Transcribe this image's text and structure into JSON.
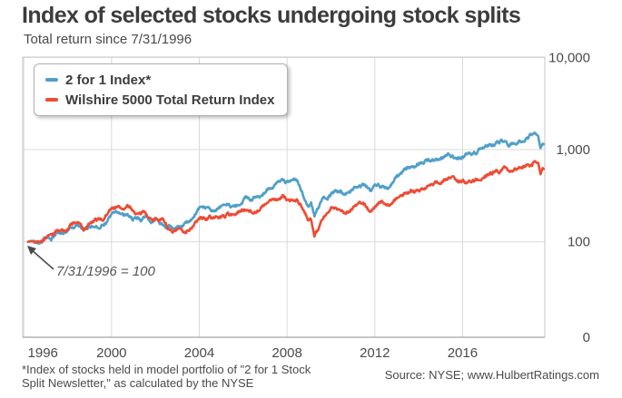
{
  "header": {
    "title": "Index of selected stocks undergoing stock splits",
    "subtitle": "Total return since 7/31/1996"
  },
  "legend": {
    "items": [
      {
        "label": "2 for 1 Index*",
        "color": "#4f9fca"
      },
      {
        "label": "Wilshire 5000 Total Return Index",
        "color": "#ee4b33"
      }
    ]
  },
  "annotation": {
    "text": "7/31/1996 = 100"
  },
  "footer": {
    "footnote_line1": "*Index of stocks held in model portfolio of \"2 for 1 Stock",
    "footnote_line2": "Split Newsletter,\" as calculated by the NYSE",
    "source": "Source: NYSE; www.HulbertRatings.com"
  },
  "colors": {
    "blue_series": "#4f9fca",
    "red_series": "#ee4b33",
    "gridline": "#d9d9d9",
    "plot_border": "#c6c6c6",
    "bottom_axis": "#b3b3b3",
    "axis_text": "#4a4a4a",
    "arrow": "#4a4a4a"
  },
  "chart_data": {
    "type": "line",
    "title": "Index of selected stocks undergoing stock splits",
    "subtitle": "Total return since 7/31/1996",
    "base_note": "7/31/1996 = 100",
    "legend_position": "top-left",
    "grid": true,
    "x_axis": {
      "range": [
        1995.95,
        2019.75
      ],
      "ticks": [
        1996,
        2000,
        2004,
        2008,
        2012,
        2016
      ]
    },
    "y_axis": {
      "scale": "log",
      "tick_labels": [
        "10,000",
        "1,000",
        "100",
        "0"
      ],
      "tick_values": [
        10000,
        1000,
        100,
        0
      ],
      "side": "right"
    },
    "series": [
      {
        "name": "2 for 1 Index*",
        "color": "#4f9fca",
        "points": [
          [
            1996.2,
            100
          ],
          [
            1996.5,
            103
          ],
          [
            1996.8,
            107
          ],
          [
            1997.05,
            113
          ],
          [
            1997.25,
            108
          ],
          [
            1997.6,
            126
          ],
          [
            1997.8,
            122
          ],
          [
            1998.1,
            145
          ],
          [
            1998.45,
            155
          ],
          [
            1998.75,
            124
          ],
          [
            1999.0,
            145
          ],
          [
            1999.3,
            150
          ],
          [
            1999.6,
            158
          ],
          [
            1999.9,
            185
          ],
          [
            2000.2,
            210
          ],
          [
            2000.45,
            192
          ],
          [
            2000.7,
            205
          ],
          [
            2001.0,
            188
          ],
          [
            2001.35,
            172
          ],
          [
            2001.6,
            182
          ],
          [
            2001.8,
            162
          ],
          [
            2002.1,
            172
          ],
          [
            2002.4,
            158
          ],
          [
            2002.78,
            134
          ],
          [
            2003.05,
            142
          ],
          [
            2003.25,
            137
          ],
          [
            2003.7,
            180
          ],
          [
            2004.0,
            215
          ],
          [
            2004.5,
            228
          ],
          [
            2004.8,
            220
          ],
          [
            2005.2,
            245
          ],
          [
            2005.7,
            265
          ],
          [
            2006.2,
            310
          ],
          [
            2006.5,
            295
          ],
          [
            2007.0,
            355
          ],
          [
            2007.5,
            430
          ],
          [
            2007.85,
            465
          ],
          [
            2008.1,
            430
          ],
          [
            2008.45,
            445
          ],
          [
            2008.7,
            330
          ],
          [
            2008.95,
            235
          ],
          [
            2009.1,
            255
          ],
          [
            2009.25,
            188
          ],
          [
            2009.6,
            265
          ],
          [
            2010.0,
            330
          ],
          [
            2010.45,
            365
          ],
          [
            2010.65,
            325
          ],
          [
            2011.1,
            405
          ],
          [
            2011.45,
            430
          ],
          [
            2011.8,
            348
          ],
          [
            2012.05,
            400
          ],
          [
            2012.4,
            430
          ],
          [
            2012.6,
            415
          ],
          [
            2012.9,
            470
          ],
          [
            2013.4,
            600
          ],
          [
            2013.9,
            680
          ],
          [
            2014.4,
            760
          ],
          [
            2014.9,
            820
          ],
          [
            2015.3,
            880
          ],
          [
            2015.55,
            910
          ],
          [
            2015.75,
            855
          ],
          [
            2016.1,
            845
          ],
          [
            2016.4,
            920
          ],
          [
            2016.9,
            1010
          ],
          [
            2017.4,
            1090
          ],
          [
            2017.9,
            1200
          ],
          [
            2018.1,
            1140
          ],
          [
            2018.5,
            1280
          ],
          [
            2018.8,
            1350
          ],
          [
            2019.05,
            1400
          ],
          [
            2019.3,
            1520
          ],
          [
            2019.45,
            1430
          ],
          [
            2019.55,
            1040
          ],
          [
            2019.65,
            1190
          ],
          [
            2019.72,
            1150
          ]
        ]
      },
      {
        "name": "Wilshire 5000 Total Return Index",
        "color": "#ee4b33",
        "points": [
          [
            1996.2,
            100
          ],
          [
            1996.5,
            104
          ],
          [
            1996.8,
            108
          ],
          [
            1997.05,
            116
          ],
          [
            1997.25,
            111
          ],
          [
            1997.6,
            131
          ],
          [
            1997.8,
            128
          ],
          [
            1998.1,
            152
          ],
          [
            1998.45,
            165
          ],
          [
            1998.75,
            132
          ],
          [
            1999.0,
            155
          ],
          [
            1999.3,
            163
          ],
          [
            1999.6,
            172
          ],
          [
            1999.9,
            215
          ],
          [
            2000.2,
            245
          ],
          [
            2000.45,
            225
          ],
          [
            2000.7,
            240
          ],
          [
            2001.0,
            212
          ],
          [
            2001.35,
            192
          ],
          [
            2001.6,
            203
          ],
          [
            2001.8,
            178
          ],
          [
            2002.1,
            188
          ],
          [
            2002.4,
            170
          ],
          [
            2002.78,
            122
          ],
          [
            2003.05,
            130
          ],
          [
            2003.25,
            125
          ],
          [
            2003.7,
            152
          ],
          [
            2004.0,
            175
          ],
          [
            2004.5,
            185
          ],
          [
            2004.8,
            178
          ],
          [
            2005.2,
            195
          ],
          [
            2005.7,
            205
          ],
          [
            2006.2,
            232
          ],
          [
            2006.5,
            222
          ],
          [
            2007.0,
            252
          ],
          [
            2007.5,
            285
          ],
          [
            2007.85,
            298
          ],
          [
            2008.1,
            275
          ],
          [
            2008.45,
            285
          ],
          [
            2008.7,
            215
          ],
          [
            2008.95,
            162
          ],
          [
            2009.1,
            175
          ],
          [
            2009.25,
            127
          ],
          [
            2009.6,
            175
          ],
          [
            2010.0,
            215
          ],
          [
            2010.45,
            238
          ],
          [
            2010.65,
            212
          ],
          [
            2011.1,
            255
          ],
          [
            2011.45,
            268
          ],
          [
            2011.8,
            218
          ],
          [
            2012.05,
            248
          ],
          [
            2012.4,
            265
          ],
          [
            2012.6,
            255
          ],
          [
            2012.9,
            285
          ],
          [
            2013.4,
            340
          ],
          [
            2013.9,
            375
          ],
          [
            2014.4,
            410
          ],
          [
            2014.9,
            440
          ],
          [
            2015.3,
            465
          ],
          [
            2015.55,
            478
          ],
          [
            2015.75,
            448
          ],
          [
            2016.1,
            442
          ],
          [
            2016.4,
            480
          ],
          [
            2016.9,
            520
          ],
          [
            2017.4,
            555
          ],
          [
            2017.9,
            610
          ],
          [
            2018.1,
            580
          ],
          [
            2018.5,
            645
          ],
          [
            2018.8,
            675
          ],
          [
            2019.05,
            700
          ],
          [
            2019.3,
            768
          ],
          [
            2019.45,
            730
          ],
          [
            2019.55,
            552
          ],
          [
            2019.65,
            655
          ],
          [
            2019.72,
            635
          ]
        ]
      }
    ]
  }
}
